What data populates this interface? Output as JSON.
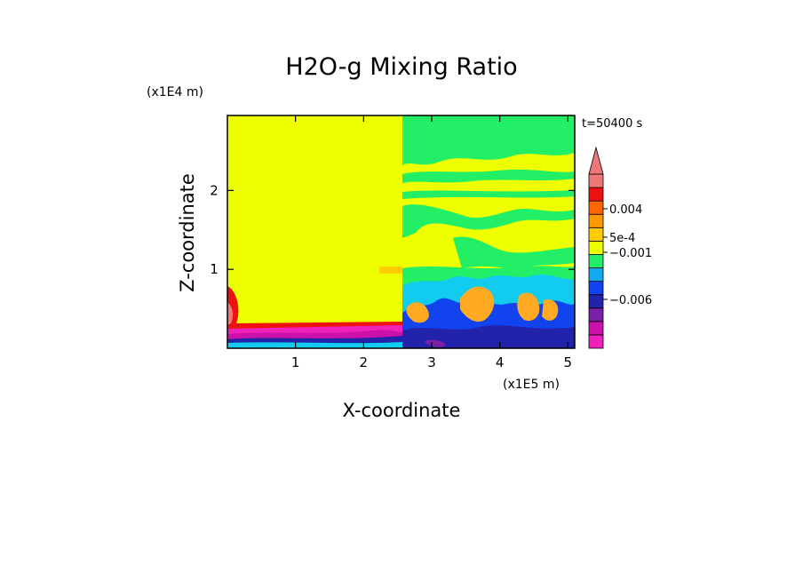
{
  "chart_data": {
    "type": "heatmap",
    "title": "H2O-g Mixing Ratio",
    "xlabel": "X-coordinate",
    "ylabel": "Z-coordinate",
    "x_unit": "(x1E5 m)",
    "y_unit": "(x1E4 m)",
    "time_label": "t=50400 s",
    "xlim": [
      0,
      5.1
    ],
    "ylim": [
      0,
      2.95
    ],
    "x_ticks": [
      1,
      2,
      3,
      4,
      5
    ],
    "y_ticks": [
      1,
      2
    ],
    "x_tick_labels": [
      "1",
      "2",
      "3",
      "4",
      "5"
    ],
    "y_tick_labels": [
      "1",
      "2"
    ],
    "colorbar": {
      "colors": [
        "#ee22bb",
        "#cc11aa",
        "#7a1fa8",
        "#2222aa",
        "#1144ee",
        "#11aaee",
        "#22ee66",
        "#eeff00",
        "#ffcc00",
        "#ff9900",
        "#ff6600",
        "#ee1111",
        "#ee7777"
      ],
      "labels": [
        {
          "text": "0.004",
          "level": 0.004
        },
        {
          "text": "5e-4",
          "level": 0.0005
        },
        {
          "text": "−0.001",
          "level": -0.001
        },
        {
          "text": "−0.006",
          "level": -0.006
        }
      ],
      "extend": "max"
    },
    "regions": [
      {
        "label": "background",
        "value": 0.0,
        "color": "#eeff00"
      }
    ]
  }
}
